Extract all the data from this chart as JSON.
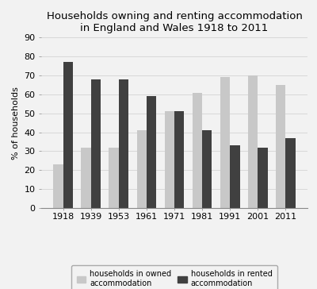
{
  "title": "Households owning and renting accommodation\nin England and Wales 1918 to 2011",
  "years": [
    "1918",
    "1939",
    "1953",
    "1961",
    "1971",
    "1981",
    "1991",
    "2001",
    "2011"
  ],
  "owned": [
    23,
    32,
    32,
    41,
    51,
    61,
    69,
    70,
    65
  ],
  "rented": [
    77,
    68,
    68,
    59,
    51,
    41,
    33,
    32,
    37
  ],
  "owned_color": "#c8c8c8",
  "rented_color": "#404040",
  "ylabel": "% of households",
  "ylim": [
    0,
    90
  ],
  "yticks": [
    0,
    10,
    20,
    30,
    40,
    50,
    60,
    70,
    80,
    90
  ],
  "legend_owned": "households in owned\naccommodation",
  "legend_rented": "households in rented\naccommodation",
  "bar_width": 0.35,
  "title_fontsize": 9.5,
  "axis_fontsize": 8,
  "tick_fontsize": 8,
  "legend_fontsize": 7,
  "background_color": "#f2f2f2"
}
